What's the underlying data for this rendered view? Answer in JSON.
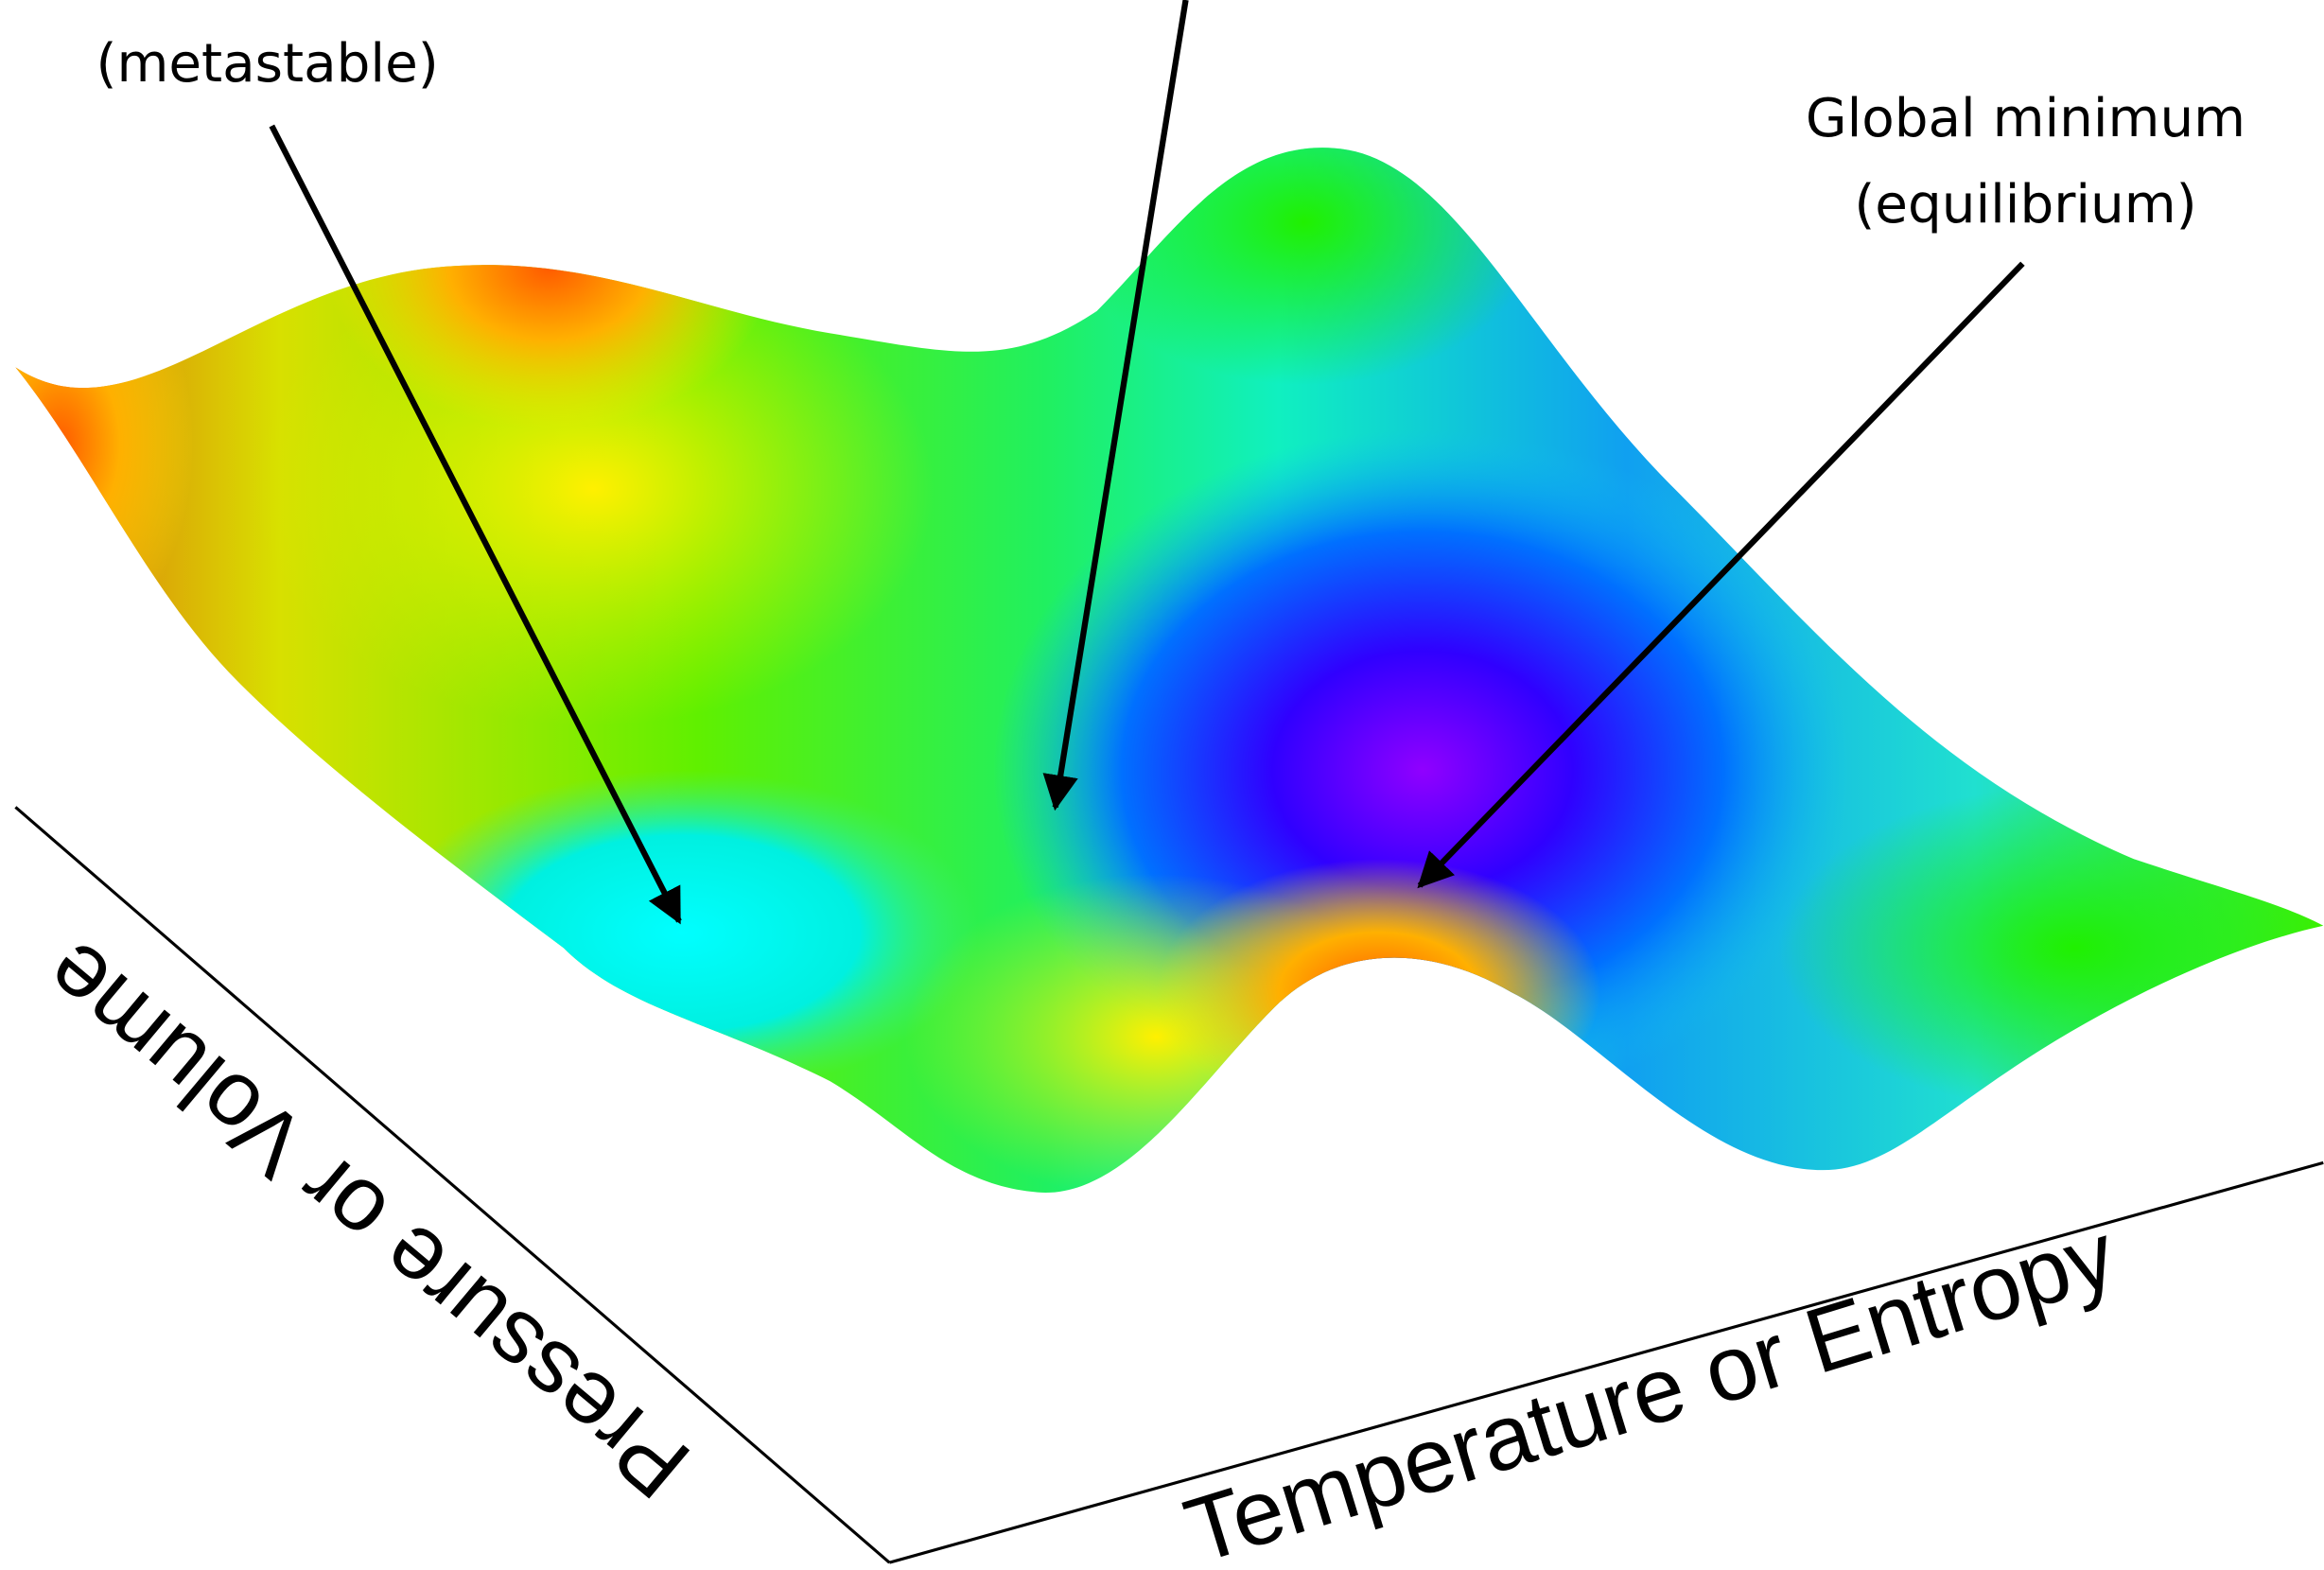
{
  "annotations": {
    "metastable": "(metastable)",
    "global_minimum": [
      "Global minimum",
      "(equilibrium)"
    ]
  },
  "axes": {
    "x_label": "Temperature or Entropy",
    "y_label": "Pressure or Volume"
  }
}
